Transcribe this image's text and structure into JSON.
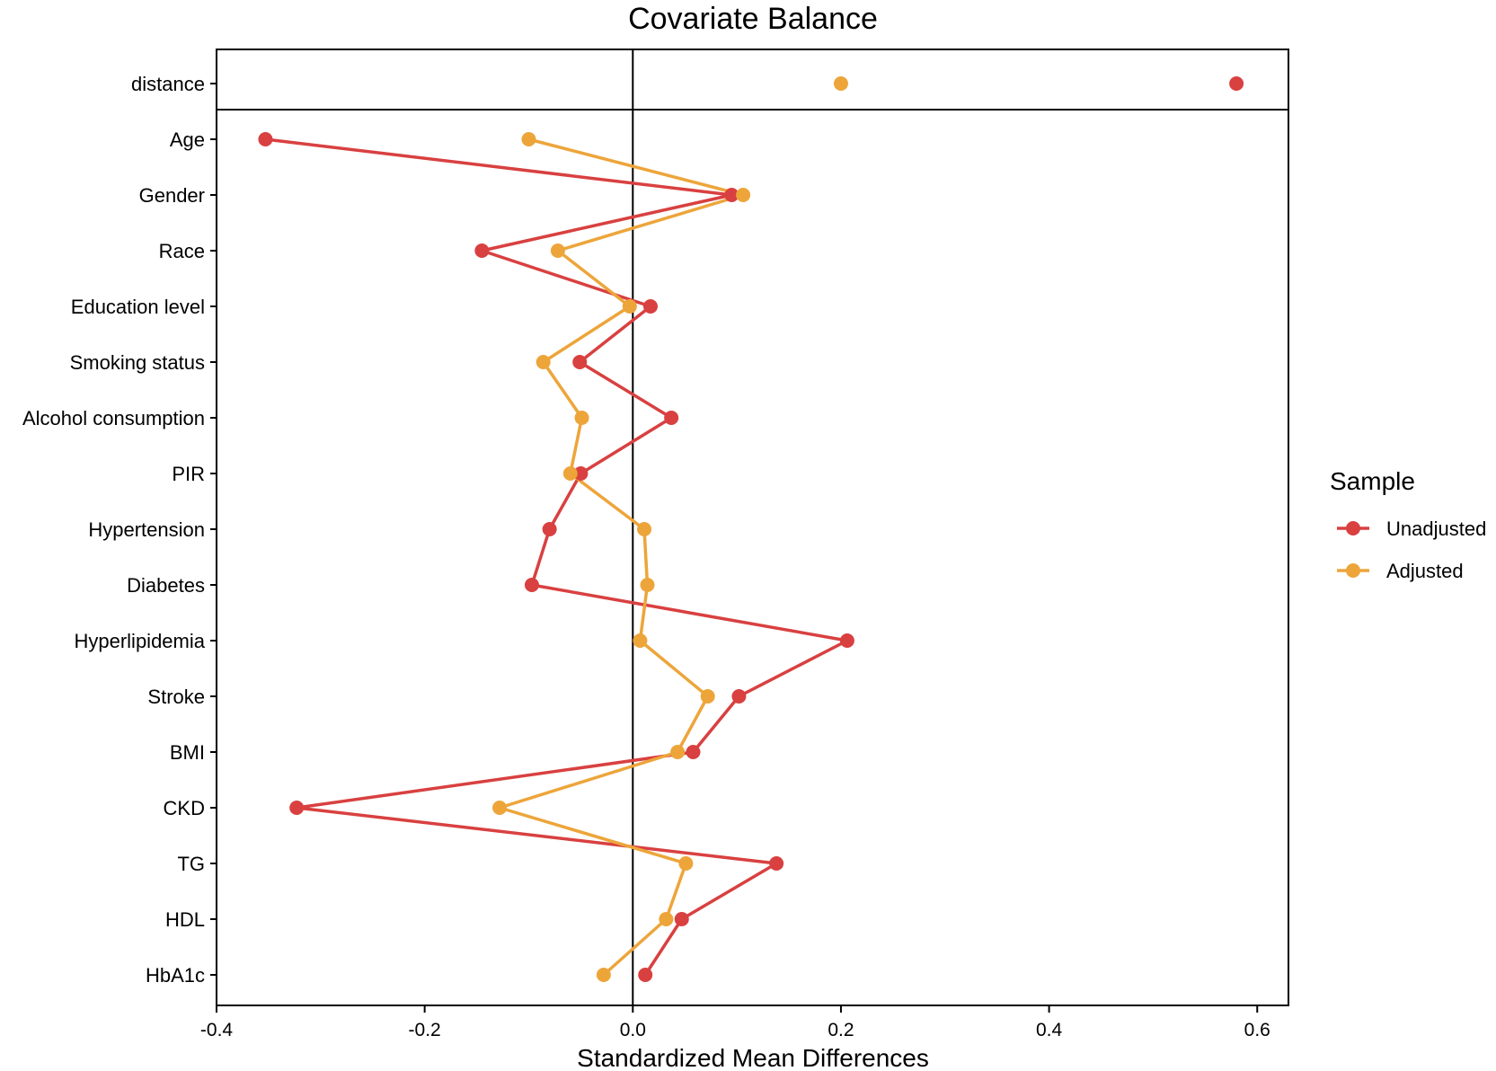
{
  "chart_data": {
    "type": "scatter",
    "title": "Covariate Balance",
    "xlabel": "Standardized Mean Differences",
    "ylabel": "",
    "xlim": [
      -0.4,
      0.63
    ],
    "xticks": [
      -0.4,
      -0.2,
      0.0,
      0.2,
      0.4,
      0.6
    ],
    "xtick_labels": [
      "-0.4",
      "-0.2",
      "0.0",
      "0.2",
      "0.4",
      "0.6"
    ],
    "reference_line_x": 0,
    "grid": false,
    "legend": {
      "title": "Sample",
      "placement": "right"
    },
    "distance_row": {
      "label": "distance",
      "values": {
        "Unadjusted": 0.58,
        "Adjusted": 0.2
      }
    },
    "categories": [
      "Age",
      "Gender",
      "Race",
      "Education level",
      "Smoking status",
      "Alcohol consumption",
      "PIR",
      "Hypertension",
      "Diabetes",
      "Hyperlipidemia",
      "Stroke",
      "BMI",
      "CKD",
      "TG",
      "HDL",
      "HbA1c"
    ],
    "series": [
      {
        "name": "Unadjusted",
        "color": "#d94040",
        "values": [
          -0.353,
          0.095,
          -0.145,
          0.017,
          -0.051,
          0.037,
          -0.05,
          -0.08,
          -0.097,
          0.206,
          0.102,
          0.058,
          -0.323,
          0.138,
          0.047,
          0.012
        ]
      },
      {
        "name": "Adjusted",
        "color": "#eda53a",
        "values": [
          -0.1,
          0.106,
          -0.072,
          -0.003,
          -0.086,
          -0.049,
          -0.06,
          0.011,
          0.014,
          0.007,
          0.072,
          0.043,
          -0.128,
          0.051,
          0.032,
          -0.028
        ]
      }
    ]
  }
}
